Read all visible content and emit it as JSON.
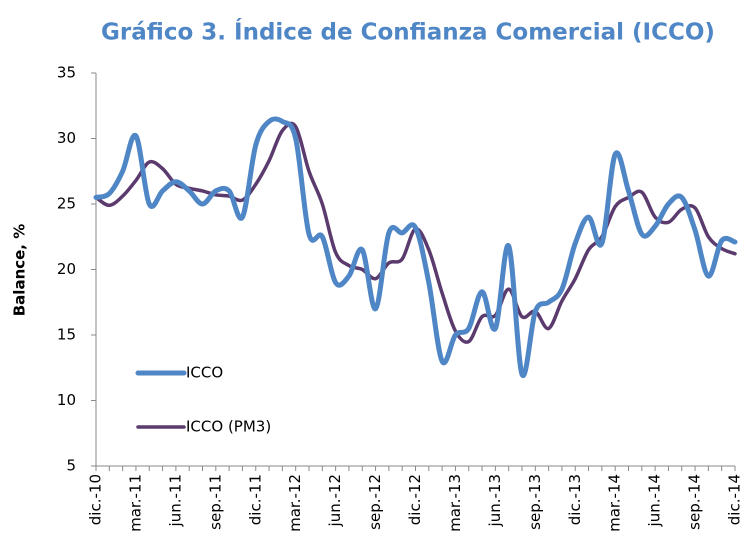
{
  "chart_data": {
    "type": "line",
    "title": "Gráfico 3. Índice de Confianza Comercial (ICCO)",
    "y_label": "Balance, %",
    "categories": [
      "dic.-10",
      null,
      null,
      "mar.-11",
      null,
      null,
      "jun.-11",
      null,
      null,
      "sep.-11",
      null,
      null,
      "dic.-11",
      null,
      null,
      "mar.-12",
      null,
      null,
      "jun.-12",
      null,
      null,
      "sep.-12",
      null,
      null,
      "dic.-12",
      null,
      null,
      "mar.-13",
      null,
      null,
      "jun.-13",
      null,
      null,
      "sep.-13",
      null,
      null,
      "dic.-13",
      null,
      null,
      "mar.-14",
      null,
      null,
      "jun.-14",
      null,
      null,
      "sep.-14",
      null,
      null,
      "dic.-14"
    ],
    "series": [
      {
        "name": "ICCO",
        "color": "#4f86c6",
        "values": [
          25.5,
          25.8,
          27.5,
          30.2,
          25,
          26,
          26.7,
          26,
          25,
          26,
          26,
          24,
          29.5,
          31.3,
          31.3,
          30,
          22.7,
          22.5,
          19,
          19.5,
          21.5,
          17,
          22.8,
          22.8,
          23.2,
          19,
          13,
          15,
          15.5,
          18.3,
          15.5,
          21.8,
          12,
          16.8,
          17.5,
          18.5,
          22,
          24,
          22,
          28.8,
          26,
          22.7,
          23.3,
          25,
          25.5,
          23,
          19.5,
          22.2,
          22.1
        ]
      },
      {
        "name": "ICCO (PM3)",
        "color": "#5b3a6e",
        "values": [
          25.5,
          24.9,
          25.6,
          26.8,
          28.2,
          27.7,
          26.5,
          26.2,
          26,
          25.7,
          25.6,
          25.3,
          26.5,
          28.3,
          30.6,
          30.9,
          27.5,
          25,
          21.3,
          20.3,
          20,
          19.3,
          20.5,
          20.8,
          23.1,
          21.5,
          18.2,
          15.3,
          14.5,
          16.4,
          16.5,
          18.5,
          16.4,
          16.8,
          15.5,
          17.6,
          19.3,
          21.5,
          22.5,
          24.8,
          25.5,
          25.9,
          24,
          23.6,
          24.6,
          24.7,
          22.5,
          21.6,
          21.2
        ]
      }
    ],
    "ylim": [
      5,
      35
    ],
    "yticks": [
      5,
      10,
      15,
      20,
      25,
      30,
      35
    ],
    "grid": false
  }
}
